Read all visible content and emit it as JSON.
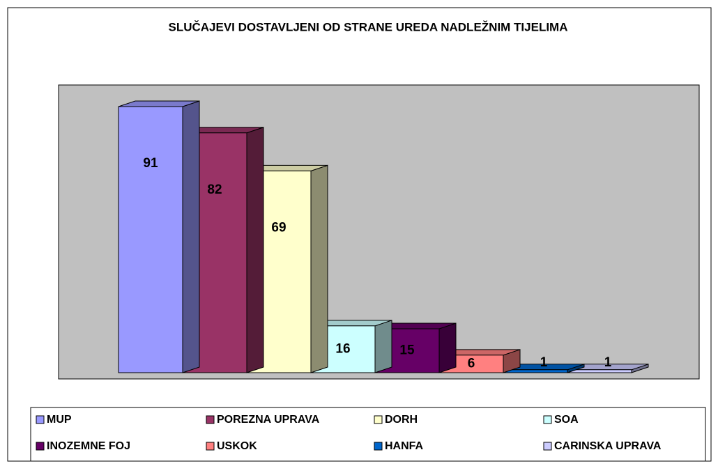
{
  "chart_data": {
    "type": "bar",
    "title": "SLUČAJEVI DOSTAVLJENI OD STRANE UREDA NADLEŽNIM TIJELIMA",
    "series": [
      {
        "name": "MUP",
        "color": "#9999FF",
        "values": [
          91
        ]
      },
      {
        "name": "POREZNA UPRAVA",
        "color": "#993366",
        "values": [
          82
        ]
      },
      {
        "name": "DORH",
        "color": "#FFFFCC",
        "values": [
          69
        ]
      },
      {
        "name": "SOA",
        "color": "#CCFFFF",
        "values": [
          16
        ]
      },
      {
        "name": "INOZEMNE FOJ",
        "color": "#660066",
        "values": [
          15
        ]
      },
      {
        "name": "USKOK",
        "color": "#FF8080",
        "values": [
          6
        ]
      },
      {
        "name": "HANFA",
        "color": "#0066CC",
        "values": [
          1
        ]
      },
      {
        "name": "CARINSKA UPRAVA",
        "color": "#CCCCFF",
        "values": [
          1
        ]
      }
    ]
  }
}
